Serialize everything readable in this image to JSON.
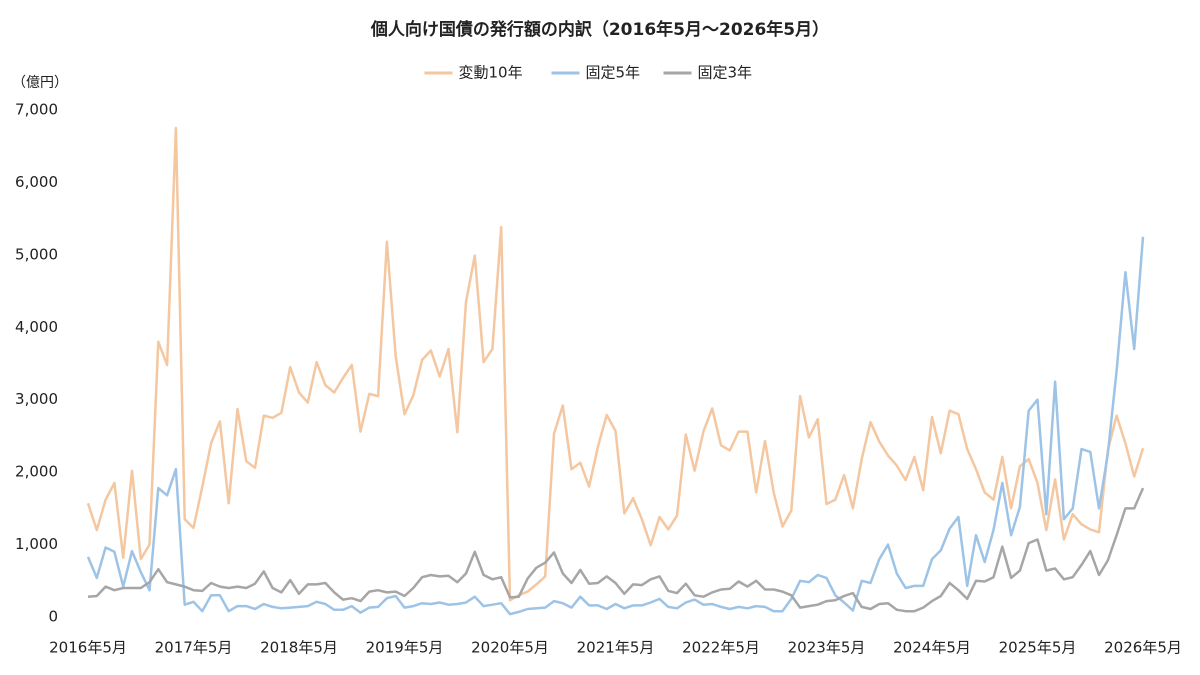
{
  "chart_data": {
    "type": "line",
    "title": "個人向け国債の発行額の内訳（2016年5月～2026年5月）",
    "y_label": "（億円）",
    "categories": [
      "2016年5月",
      null,
      null,
      null,
      null,
      null,
      null,
      null,
      null,
      null,
      null,
      null,
      "2017年5月",
      null,
      null,
      null,
      null,
      null,
      null,
      null,
      null,
      null,
      null,
      null,
      "2018年5月",
      null,
      null,
      null,
      null,
      null,
      null,
      null,
      null,
      null,
      null,
      null,
      "2019年5月",
      null,
      null,
      null,
      null,
      null,
      null,
      null,
      null,
      null,
      null,
      null,
      "2020年5月",
      null,
      null,
      null,
      null,
      null,
      null,
      null,
      null,
      null,
      null,
      null,
      "2021年5月",
      null,
      null,
      null,
      null,
      null,
      null,
      null,
      null,
      null,
      null,
      null,
      "2022年5月",
      null,
      null,
      null,
      null,
      null,
      null,
      null,
      null,
      null,
      null,
      null,
      "2023年5月",
      null,
      null,
      null,
      null,
      null,
      null,
      null,
      null,
      null,
      null,
      null,
      "2024年5月",
      null,
      null,
      null,
      null,
      null,
      null,
      null,
      null,
      null,
      null,
      null,
      "2025年5月",
      null,
      null,
      null,
      null,
      null,
      null,
      null,
      null,
      null,
      null,
      null,
      "2026年5月"
    ],
    "series": [
      {
        "name": "変動10年",
        "color": "#f4c7a0",
        "values": [
          1570,
          1200,
          1620,
          1850,
          820,
          2020,
          800,
          1000,
          3800,
          3480,
          6750,
          1350,
          1230,
          1800,
          2400,
          2700,
          1570,
          2870,
          2150,
          2060,
          2780,
          2750,
          2820,
          3450,
          3100,
          2960,
          3520,
          3200,
          3100,
          3300,
          3480,
          2560,
          3080,
          3050,
          5180,
          3600,
          2800,
          3060,
          3550,
          3680,
          3320,
          3700,
          2550,
          4350,
          4990,
          3520,
          3700,
          5380,
          230,
          300,
          350,
          450,
          560,
          2530,
          2920,
          2040,
          2130,
          1800,
          2350,
          2790,
          2570,
          1430,
          1640,
          1350,
          990,
          1380,
          1210,
          1400,
          2520,
          2020,
          2560,
          2880,
          2370,
          2300,
          2560,
          2560,
          1720,
          2430,
          1710,
          1250,
          1470,
          3050,
          2480,
          2730,
          1560,
          1620,
          1960,
          1500,
          2180,
          2690,
          2420,
          2230,
          2090,
          1890,
          2210,
          1750,
          2760,
          2260,
          2850,
          2800,
          2320,
          2040,
          1720,
          1620,
          2210,
          1500,
          2080,
          2180,
          1850,
          1200,
          1900,
          1070,
          1420,
          1280,
          1210,
          1170,
          2300,
          2780,
          2400,
          1940,
          2330
        ]
      },
      {
        "name": "固定5年",
        "color": "#9dc3e6",
        "values": [
          830,
          540,
          960,
          900,
          420,
          910,
          620,
          370,
          1780,
          1680,
          2040,
          170,
          210,
          80,
          300,
          300,
          80,
          150,
          150,
          110,
          180,
          140,
          120,
          130,
          140,
          150,
          210,
          180,
          100,
          100,
          150,
          60,
          130,
          140,
          260,
          290,
          130,
          150,
          190,
          180,
          200,
          170,
          180,
          200,
          280,
          150,
          170,
          190,
          40,
          70,
          110,
          120,
          130,
          220,
          190,
          130,
          280,
          160,
          160,
          110,
          180,
          120,
          160,
          160,
          200,
          250,
          140,
          120,
          200,
          240,
          170,
          180,
          140,
          110,
          140,
          120,
          150,
          140,
          80,
          80,
          250,
          500,
          480,
          580,
          540,
          300,
          200,
          90,
          500,
          470,
          800,
          1000,
          600,
          400,
          430,
          430,
          800,
          920,
          1220,
          1380,
          430,
          1130,
          760,
          1200,
          1850,
          1130,
          1520,
          2850,
          3000,
          1420,
          3250,
          1350,
          1500,
          2320,
          2280,
          1500,
          2250,
          3400,
          4760,
          3700,
          5250
        ]
      },
      {
        "name": "固定3年",
        "color": "#a6a6a6",
        "values": [
          280,
          290,
          420,
          370,
          400,
          400,
          400,
          480,
          660,
          480,
          450,
          420,
          370,
          360,
          470,
          420,
          400,
          420,
          400,
          460,
          630,
          400,
          340,
          510,
          320,
          450,
          450,
          470,
          340,
          240,
          260,
          220,
          350,
          370,
          340,
          350,
          290,
          400,
          550,
          580,
          560,
          570,
          480,
          600,
          900,
          580,
          520,
          550,
          270,
          280,
          530,
          680,
          750,
          890,
          600,
          470,
          650,
          460,
          470,
          560,
          470,
          320,
          450,
          440,
          520,
          560,
          360,
          330,
          460,
          300,
          280,
          340,
          380,
          390,
          490,
          420,
          500,
          380,
          380,
          350,
          300,
          130,
          150,
          170,
          220,
          230,
          290,
          330,
          140,
          110,
          180,
          190,
          100,
          80,
          80,
          130,
          220,
          290,
          470,
          370,
          250,
          500,
          490,
          550,
          970,
          540,
          640,
          1020,
          1070,
          640,
          670,
          520,
          550,
          720,
          910,
          580,
          780,
          1130,
          1500,
          1500,
          1780
        ]
      }
    ],
    "ylim": [
      0,
      7000
    ],
    "yticks": [
      0,
      {
        "value": 1000,
        "label": "1,000"
      },
      {
        "value": 2000,
        "label": "2,000"
      },
      {
        "value": 3000,
        "label": "3,000"
      },
      {
        "value": 4000,
        "label": "4,000"
      },
      {
        "value": 5000,
        "label": "5,000"
      },
      {
        "value": 6000,
        "label": "6,000"
      },
      {
        "value": 7000,
        "label": "7,000"
      }
    ],
    "grid": false,
    "legend": "top"
  }
}
